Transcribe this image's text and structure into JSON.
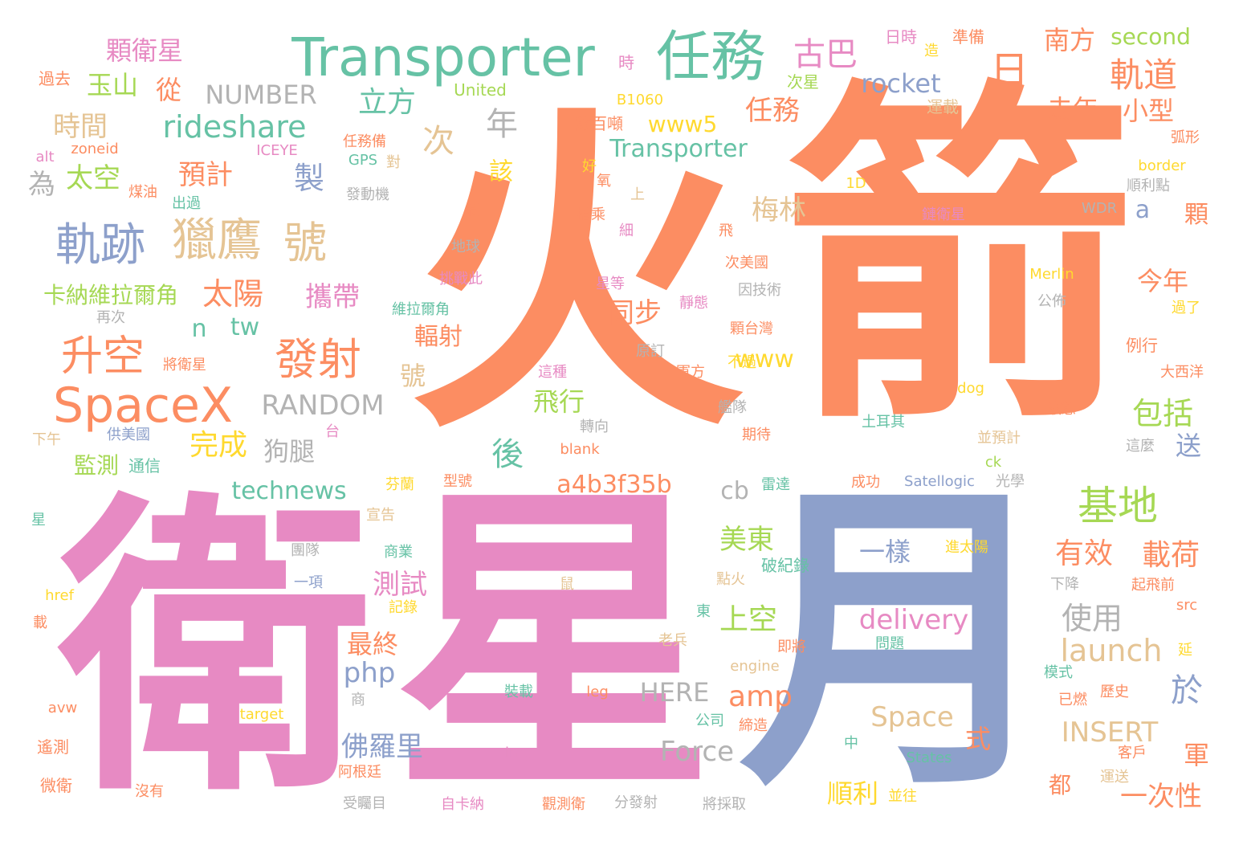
{
  "palette": {
    "orange": "#fc8d62",
    "teal": "#66c2a5",
    "pink": "#e78ac3",
    "blue": "#8da0cb",
    "green": "#a6d854",
    "yellow": "#ffd92f",
    "tan": "#e5c494",
    "gray": "#b3b3b3"
  },
  "words": {
    "huo": "火",
    "jian": "箭",
    "wei": "衛",
    "xing": "星",
    "yue": "月",
    "transporter_big": "Transporter",
    "renwu_big": "任務",
    "spacex": "SpaceX",
    "guiji": "軌跡",
    "lieying": "獵鷹",
    "hao": "號",
    "shengkong": "升空",
    "fashe": "發射",
    "jidi": "基地",
    "guidao": "軌道",
    "ri": "日",
    "guba": "古巴",
    "lifang": "立方",
    "rideshare": "rideshare",
    "rocket": "rocket",
    "nanfang": "南方",
    "second": "second",
    "keweixing": "顆衛星",
    "yushan": "玉山",
    "cong": "從",
    "number": "NUMBER",
    "shijian": "時間",
    "taikong": "太空",
    "yuji": "預計",
    "zhi": "製",
    "wei2": "為",
    "ci": "次",
    "nian": "年",
    "renwu2": "任務",
    "www5": "www5",
    "transporter2": "Transporter",
    "qunian": "去年",
    "xiaoxing": "小型",
    "kana": "卡納維拉爾角",
    "taiyang": "太陽",
    "xiedai": "攜帶",
    "meilin": "梅林",
    "gai": "該",
    "ke": "顆",
    "a": "a",
    "n": "n",
    "tw": "tw",
    "tongbu": "同步",
    "jinnian": "今年",
    "fushe": "輻射",
    "random": "RANDOM",
    "www": "www",
    "hao2": "號",
    "feixing": "飛行",
    "baokuo": "包括",
    "wancheng": "完成",
    "goutui": "狗腿",
    "hou": "後",
    "song": "送",
    "jiance": "監測",
    "tongxin": "通信",
    "technews": "technews",
    "a4b": "a4b3f35b",
    "cb": "cb",
    "meidong": "美東",
    "youxiao": "有效",
    "zaihe": "載荷",
    "yiyang": "一樣",
    "ceshi": "測試",
    "shangkong": "上空",
    "shiyong": "使用",
    "delivery": "delivery",
    "launch": "launch",
    "zuizhong": "最終",
    "php": "php",
    "amp": "amp",
    "yu": "於",
    "here": "HERE",
    "space": "Space",
    "insert": "INSERT",
    "fuluoli": "佛羅里",
    "force": "Force",
    "shi": "式",
    "jun": "軍",
    "shunli": "順利",
    "dou": "都",
    "yicixing": "一次性",
    "united": "United",
    "b1060": "B1060",
    "shubaidun": "數百噸",
    "shi2": "時",
    "rishi": "日時",
    "zao": "造",
    "zhunbei": "準備",
    "cixing": "次星",
    "yunzai": "運載",
    "guoqu": "過去",
    "alt": "alt",
    "zoneid": "zoneid",
    "iceye": "ICEYE",
    "renwubei": "任務備",
    "meiyou": "煤油",
    "chuguo": "出過",
    "gps": "GPS",
    "dui": "對",
    "fadongji": "發動機",
    "hao3": "好",
    "yang": "氧",
    "oned": "1D",
    "border": "border",
    "shunlidian": "順利點",
    "hu": "弧形",
    "xin": "新",
    "dajia": "搭乘",
    "shang": "上",
    "lianweixing": "鏈衛星",
    "wdr": "WDR",
    "diqiu": "地球",
    "xi": "細",
    "fei": "飛",
    "cimeiguo": "次美國",
    "merlin": "Merlin",
    "tiaozhan": "挑戰此",
    "xingdeng": "星等",
    "yinjishu": "因技術",
    "gongbu": "公佈",
    "zaici": "再次",
    "weilaer": "維拉爾角",
    "jingtai": "靜態",
    "guole": "過了",
    "ketaiwan": "顆台灣",
    "lixing": "例行",
    "jiangweixing": "將衛星",
    "yuanding": "原訂",
    "zhezhong": "這種",
    "junfang": "軍方",
    "buguo": "不過",
    "daxiyang": "大西洋",
    "dog": "dog",
    "jiandui": "艦隊",
    "yetai": "液態",
    "xiawu": "下午",
    "gongmeiguo": "供美國",
    "tai": "台",
    "zhuanxiang": "轉向",
    "blank": "blank",
    "qidai": "期待",
    "tuerqi": "土耳其",
    "bingyuji": "並預計",
    "zheme": "這麼",
    "ck": "ck",
    "xing2": "星",
    "fenlan": "芬蘭",
    "xinghao": "型號",
    "leida": "雷達",
    "chenggong": "成功",
    "satellogic": "Satellogic",
    "guangxue": "光學",
    "xuangao": "宣告",
    "tuandui": "團隊",
    "shangye": "商業",
    "pojilu": "破紀錄",
    "jintaiyang": "進太陽",
    "yixiang": "一項",
    "xiajiang": "下降",
    "qifeiqian": "起飛前",
    "href": "href",
    "jilu": "記錄",
    "shu": "鼠",
    "dianhuo": "點火",
    "dong": "東",
    "zai": "載",
    "laobing": "老兵",
    "jijiang": "即將",
    "wenti": "問題",
    "src": "src",
    "yan": "延",
    "engine": "engine",
    "moshi": "模式",
    "avw": "avw",
    "shang2": "商",
    "zhuangzai": "裝載",
    "leg": "leg",
    "yiran": "已燃",
    "lishi": "歷史",
    "target": "target",
    "gongsi": "公司",
    "dizao": "締造",
    "yaoce": "遙測",
    "img": "img",
    "zhong": "中",
    "states": "States",
    "kehu": "客戶",
    "agenting": "阿根廷",
    "yunsong": "運送",
    "weiwei": "微衛",
    "meiyou2": "沒有",
    "shouzhumu": "受矚目",
    "zikana": "自卡納",
    "guancewei": "觀測衛",
    "fenfashe": "分發射",
    "jiangcaiqu": "將採取",
    "bingwang": "並往"
  }
}
